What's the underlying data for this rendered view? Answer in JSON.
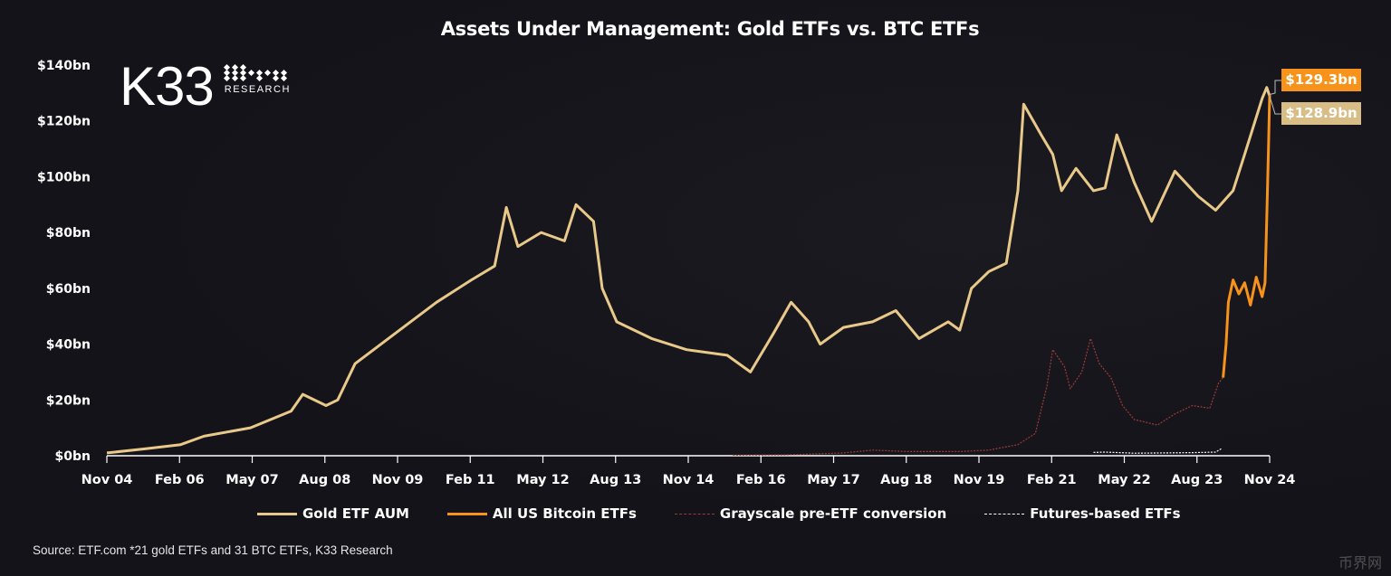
{
  "chart_data": {
    "type": "line",
    "title": "Assets Under Management: Gold ETFs vs. BTC ETFs",
    "xlabel": "",
    "ylabel": "",
    "ylim": [
      0,
      140
    ],
    "xlim": [
      "Nov 04",
      "Nov 24"
    ],
    "y_ticks": [
      "$0bn",
      "$20bn",
      "$40bn",
      "$60bn",
      "$80bn",
      "$100bn",
      "$120bn",
      "$140bn"
    ],
    "y_tick_values": [
      0,
      20,
      40,
      60,
      80,
      100,
      120,
      140
    ],
    "x_ticks": [
      "Nov 04",
      "Feb 06",
      "May 07",
      "Aug 08",
      "Nov 09",
      "Feb 11",
      "May 12",
      "Aug 13",
      "Nov 14",
      "Feb 16",
      "May 17",
      "Aug 18",
      "Nov 19",
      "Feb 21",
      "May 22",
      "Aug 23",
      "Nov 24"
    ],
    "x_tick_values": [
      2004.83,
      2006.08,
      2007.33,
      2008.58,
      2009.83,
      2011.08,
      2012.33,
      2013.58,
      2014.83,
      2016.08,
      2017.33,
      2018.58,
      2019.83,
      2021.08,
      2022.33,
      2023.58,
      2024.83
    ],
    "grid": false,
    "legend_placement": "bottom",
    "series": [
      {
        "name": "Gold ETF AUM",
        "color": "#e8c98a",
        "style": "solid",
        "x": [
          2004.83,
          2005.5,
          2006.1,
          2006.5,
          2007.3,
          2008.0,
          2008.2,
          2008.6,
          2008.8,
          2009.1,
          2009.8,
          2010.5,
          2011.1,
          2011.5,
          2011.7,
          2011.9,
          2012.3,
          2012.7,
          2012.9,
          2013.2,
          2013.35,
          2013.6,
          2014.2,
          2014.8,
          2015.5,
          2015.9,
          2016.3,
          2016.6,
          2016.9,
          2017.1,
          2017.5,
          2018.0,
          2018.4,
          2018.8,
          2019.3,
          2019.5,
          2019.7,
          2020.0,
          2020.3,
          2020.5,
          2020.6,
          2020.9,
          2021.1,
          2021.25,
          2021.5,
          2021.8,
          2022.0,
          2022.2,
          2022.5,
          2022.8,
          2023.2,
          2023.6,
          2023.9,
          2024.2,
          2024.4,
          2024.7,
          2024.78,
          2024.83
        ],
        "y": [
          1,
          2.5,
          4,
          7,
          10,
          16,
          22,
          18,
          20,
          33,
          44,
          55,
          63,
          68,
          89,
          75,
          80,
          77,
          90,
          84,
          60,
          48,
          42,
          38,
          36,
          30,
          44,
          55,
          48,
          40,
          46,
          48,
          52,
          42,
          48,
          45,
          60,
          66,
          69,
          95,
          126,
          115,
          108,
          95,
          103,
          95,
          96,
          115,
          98,
          84,
          102,
          93,
          88,
          95,
          108,
          128,
          132,
          128.9
        ]
      },
      {
        "name": "All US Bitcoin ETFs",
        "color": "#f7931a",
        "style": "solid",
        "x": [
          2024.03,
          2024.08,
          2024.12,
          2024.2,
          2024.3,
          2024.4,
          2024.5,
          2024.6,
          2024.7,
          2024.75,
          2024.78,
          2024.81,
          2024.83
        ],
        "y": [
          28,
          40,
          55,
          63,
          58,
          62,
          54,
          64,
          57,
          62,
          85,
          110,
          129.3
        ]
      },
      {
        "name": "Grayscale pre-ETF conversion",
        "color": "#9a3c36",
        "style": "dashed",
        "x": [
          2015.6,
          2016.5,
          2017.5,
          2018.0,
          2018.6,
          2019.5,
          2020.0,
          2020.5,
          2020.8,
          2021.0,
          2021.1,
          2021.3,
          2021.4,
          2021.6,
          2021.75,
          2021.9,
          2022.1,
          2022.3,
          2022.5,
          2022.9,
          2023.2,
          2023.5,
          2023.8,
          2023.95,
          2024.03
        ],
        "y": [
          0.2,
          0.3,
          1,
          2,
          1.5,
          1.5,
          2,
          4,
          8,
          25,
          38,
          32,
          24,
          30,
          42,
          33,
          28,
          18,
          13,
          11,
          15,
          18,
          17,
          26,
          28
        ]
      },
      {
        "name": "Futures-based ETFs",
        "color": "#ffffff",
        "style": "dashed",
        "x": [
          2021.8,
          2022.0,
          2022.5,
          2023.0,
          2023.5,
          2023.9,
          2024.0
        ],
        "y": [
          1.2,
          1.3,
          0.9,
          1.0,
          1.1,
          1.3,
          2.5
        ]
      }
    ],
    "end_labels": [
      {
        "text": "$129.3bn",
        "color": "#f7931a"
      },
      {
        "text": "$128.9bn",
        "color": "#d9bd86"
      }
    ]
  },
  "logo": {
    "text": "K33",
    "subtext": "RESEARCH"
  },
  "source": "Source: ETF.com *21 gold ETFs and 31 BTC ETFs, K33 Research",
  "watermark": "币界网"
}
